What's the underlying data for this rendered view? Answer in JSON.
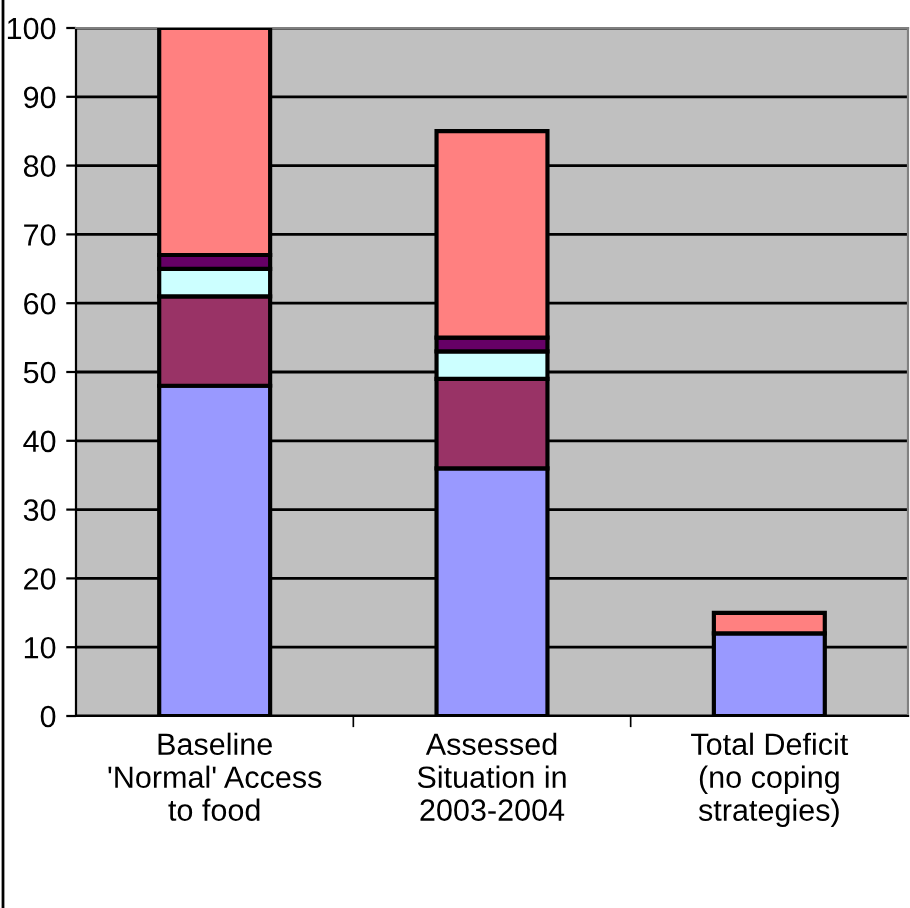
{
  "chart_data": {
    "type": "bar",
    "stacked": true,
    "categories": [
      "Baseline\n'Normal' Access\nto food",
      "Assessed\nSituation in\n2003-2004",
      "Total Deficit\n(no coping\nstrategies)"
    ],
    "series": [
      {
        "color": "#9999ff",
        "values": [
          48,
          36,
          12
        ]
      },
      {
        "color": "#993366",
        "values": [
          13,
          13,
          null
        ]
      },
      {
        "color": "#ccffff",
        "values": [
          4,
          4,
          null
        ]
      },
      {
        "color": "#660066",
        "values": [
          2,
          2,
          null
        ]
      },
      {
        "color": "#ff8080",
        "values": [
          33,
          30,
          3
        ]
      }
    ],
    "ylim": [
      0,
      100
    ],
    "yticks": [
      0,
      10,
      20,
      30,
      40,
      50,
      60,
      70,
      80,
      90,
      100
    ],
    "grid": "y"
  }
}
